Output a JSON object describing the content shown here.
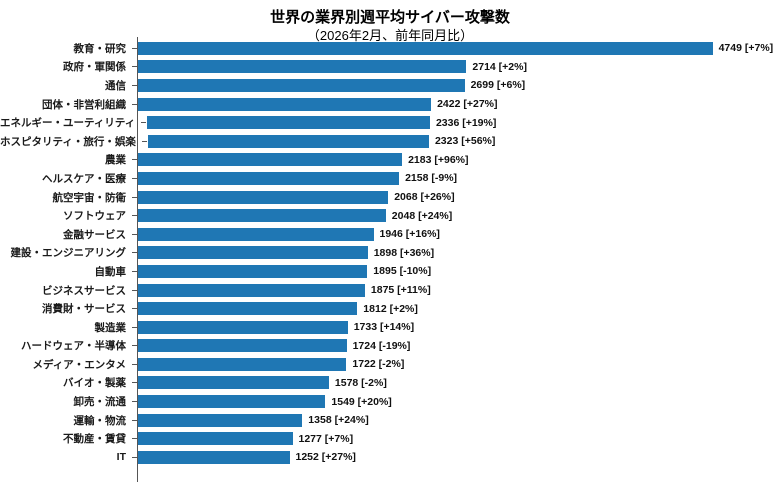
{
  "chart_data": {
    "type": "bar",
    "orientation": "horizontal",
    "title": "世界の業界別週平均サイバー攻撃数",
    "subtitle": "（2026年2月、前年同月比）",
    "xlabel": "",
    "ylabel": "",
    "xlim": [
      0,
      5000
    ],
    "grid": false,
    "legend": "none",
    "bar_color": "#1f77b4",
    "axis_color": "#555555",
    "value_label_format": "value [change]",
    "items": [
      {
        "category": "教育・研究",
        "value": 4749,
        "change": "+7%"
      },
      {
        "category": "政府・軍関係",
        "value": 2714,
        "change": "+2%"
      },
      {
        "category": "通信",
        "value": 2699,
        "change": "+6%"
      },
      {
        "category": "団体・非営利組織",
        "value": 2422,
        "change": "+27%"
      },
      {
        "category": "エネルギー・ユーティリティ",
        "value": 2336,
        "change": "+19%"
      },
      {
        "category": "ホスピタリティ・旅行・娯楽",
        "value": 2323,
        "change": "+56%"
      },
      {
        "category": "農業",
        "value": 2183,
        "change": "+96%"
      },
      {
        "category": "ヘルスケア・医療",
        "value": 2158,
        "change": "-9%"
      },
      {
        "category": "航空宇宙・防衛",
        "value": 2068,
        "change": "+26%"
      },
      {
        "category": "ソフトウェア",
        "value": 2048,
        "change": "+24%"
      },
      {
        "category": "金融サービス",
        "value": 1946,
        "change": "+16%"
      },
      {
        "category": "建設・エンジニアリング",
        "value": 1898,
        "change": "+36%"
      },
      {
        "category": "自動車",
        "value": 1895,
        "change": "-10%"
      },
      {
        "category": "ビジネスサービス",
        "value": 1875,
        "change": "+11%"
      },
      {
        "category": "消費財・サービス",
        "value": 1812,
        "change": "+2%"
      },
      {
        "category": "製造業",
        "value": 1733,
        "change": "+14%"
      },
      {
        "category": "ハードウェア・半導体",
        "value": 1724,
        "change": "-19%"
      },
      {
        "category": "メディア・エンタメ",
        "value": 1722,
        "change": "-2%"
      },
      {
        "category": "バイオ・製薬",
        "value": 1578,
        "change": "-2%"
      },
      {
        "category": "卸売・流通",
        "value": 1549,
        "change": "+20%"
      },
      {
        "category": "運輸・物流",
        "value": 1358,
        "change": "+24%"
      },
      {
        "category": "不動産・賃貸",
        "value": 1277,
        "change": "+7%"
      },
      {
        "category": "IT",
        "value": 1252,
        "change": "+27%"
      }
    ]
  }
}
